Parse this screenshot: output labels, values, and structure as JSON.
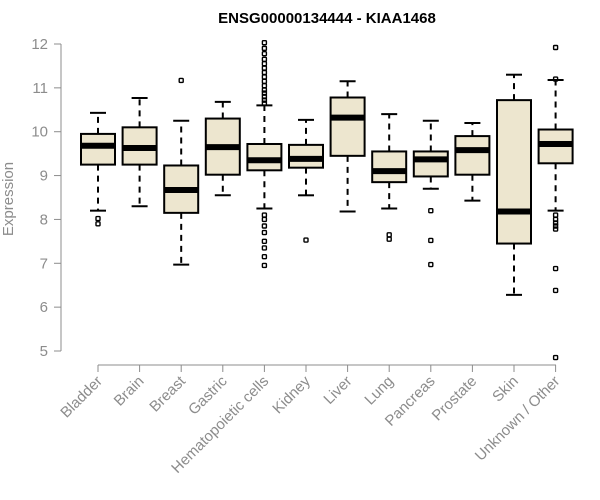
{
  "chart_data": {
    "type": "boxplot",
    "title": "ENSG00000134444 - KIAA1468",
    "xlabel": "",
    "ylabel": "Expression",
    "ylim": [
      4.7,
      12.1
    ],
    "yticks": [
      5,
      6,
      7,
      8,
      9,
      10,
      11,
      12
    ],
    "colors": {
      "box_fill": "#ede6cf",
      "stroke": "#000000",
      "axis": "#8c8c8c",
      "text": "#8c8c8c"
    },
    "categories": [
      "Bladder",
      "Brain",
      "Breast",
      "Gastric",
      "Hematopoietic cells",
      "Kidney",
      "Liver",
      "Lung",
      "Pancreas",
      "Prostate",
      "Skin",
      "Unknown / Other"
    ],
    "series": [
      {
        "name": "Bladder",
        "whisker_low": 8.2,
        "q1": 9.25,
        "median": 9.68,
        "q3": 9.95,
        "whisker_high": 10.43,
        "outliers": [
          8.02,
          7.9
        ]
      },
      {
        "name": "Brain",
        "whisker_low": 8.3,
        "q1": 9.25,
        "median": 9.63,
        "q3": 10.1,
        "whisker_high": 10.77,
        "outliers": []
      },
      {
        "name": "Breast",
        "whisker_low": 6.97,
        "q1": 8.15,
        "median": 8.67,
        "q3": 9.23,
        "whisker_high": 10.25,
        "outliers": [
          11.17
        ]
      },
      {
        "name": "Gastric",
        "whisker_low": 8.55,
        "q1": 9.02,
        "median": 9.65,
        "q3": 10.3,
        "whisker_high": 10.68,
        "outliers": []
      },
      {
        "name": "Hematopoietic cells",
        "whisker_low": 8.25,
        "q1": 9.12,
        "median": 9.35,
        "q3": 9.72,
        "whisker_high": 10.6,
        "outliers": [
          12.03,
          11.9,
          11.78,
          11.65,
          11.55,
          11.45,
          11.35,
          11.25,
          11.15,
          11.05,
          10.95,
          10.88,
          10.8,
          10.72,
          10.65,
          8.1,
          8.0,
          7.85,
          7.7,
          7.5,
          7.35,
          7.15,
          6.95
        ]
      },
      {
        "name": "Kidney",
        "whisker_low": 8.55,
        "q1": 9.18,
        "median": 9.38,
        "q3": 9.7,
        "whisker_high": 10.27,
        "outliers": [
          7.53
        ]
      },
      {
        "name": "Liver",
        "whisker_low": 8.18,
        "q1": 9.45,
        "median": 10.32,
        "q3": 10.78,
        "whisker_high": 11.15,
        "outliers": []
      },
      {
        "name": "Lung",
        "whisker_low": 8.25,
        "q1": 8.85,
        "median": 9.1,
        "q3": 9.55,
        "whisker_high": 10.4,
        "outliers": [
          7.65,
          7.55
        ]
      },
      {
        "name": "Pancreas",
        "whisker_low": 8.7,
        "q1": 8.98,
        "median": 9.37,
        "q3": 9.55,
        "whisker_high": 10.25,
        "outliers": [
          8.2,
          7.52,
          6.97
        ]
      },
      {
        "name": "Prostate",
        "whisker_low": 8.43,
        "q1": 9.02,
        "median": 9.58,
        "q3": 9.9,
        "whisker_high": 10.2,
        "outliers": []
      },
      {
        "name": "Skin",
        "whisker_low": 6.28,
        "q1": 7.45,
        "median": 8.18,
        "q3": 10.72,
        "whisker_high": 11.3,
        "outliers": []
      },
      {
        "name": "Unknown / Other",
        "whisker_low": 8.2,
        "q1": 9.28,
        "median": 9.72,
        "q3": 10.05,
        "whisker_high": 11.18,
        "outliers": [
          11.92,
          11.2,
          8.1,
          8.0,
          7.92,
          7.85,
          7.78,
          6.88,
          6.38,
          4.85
        ]
      }
    ]
  }
}
